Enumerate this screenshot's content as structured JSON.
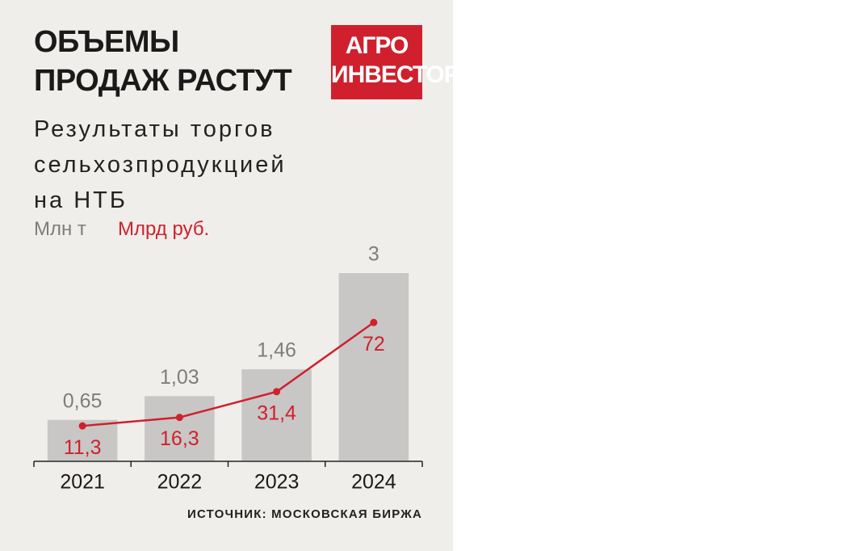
{
  "chart_data": {
    "type": "bar",
    "title": "ОБЪЕМЫ\nПРОДАЖ РАСТУТ",
    "subtitle": "Результаты торгов\nсельхозпродукцией\nна НТБ",
    "logo": "АГРО\nИНВЕСТОР",
    "source": "ИСТОЧНИК: МОСКОВСКАЯ БИРЖА",
    "categories": [
      "2021",
      "2022",
      "2023",
      "2024"
    ],
    "series": [
      {
        "name": "Млн т",
        "color": "#c8c7c5",
        "label_color": "#7d7d7b",
        "values": [
          0.65,
          1.03,
          1.46,
          3
        ],
        "value_labels": [
          "0,65",
          "1,03",
          "1,46",
          "3"
        ]
      },
      {
        "name": "Млрд руб.",
        "type": "line",
        "axis": "y2",
        "color": "#d0202e",
        "values": [
          11.3,
          16.3,
          31.4,
          72
        ],
        "value_labels": [
          "11,3",
          "16,3",
          "31,4",
          "72"
        ]
      }
    ],
    "ylim": [
      0,
      3
    ],
    "y2lim": [
      -9,
      101
    ],
    "grid": false
  }
}
